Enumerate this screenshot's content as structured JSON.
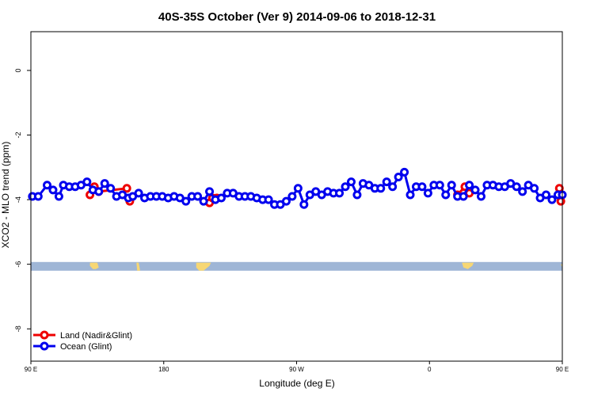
{
  "chart_data": {
    "type": "line",
    "title": "40S-35S October (Ver 9)   2014-09-06 to 2018-12-31",
    "xlabel": "Longitude (deg E)",
    "ylabel": "XCO2 - MLO trend (ppm)",
    "xlim": [
      90,
      450
    ],
    "ylim": [
      -9,
      1.2
    ],
    "x_ticks": [
      {
        "value": 90,
        "label": "90 E"
      },
      {
        "value": 180,
        "label": "180"
      },
      {
        "value": 270,
        "label": "90 W"
      },
      {
        "value": 360,
        "label": "0"
      },
      {
        "value": 450,
        "label": "90 E"
      },
      {
        "value": 540,
        "label": "180"
      }
    ],
    "y_ticks": [
      {
        "value": 0,
        "label": "0"
      },
      {
        "value": -2,
        "label": "-2"
      },
      {
        "value": -4,
        "label": "-4"
      },
      {
        "value": -6,
        "label": "-6"
      },
      {
        "value": -8,
        "label": "-8"
      }
    ],
    "legend_position": "bottom-left",
    "land_strip": {
      "y_top": -5.93,
      "y_bottom": -6.2,
      "color": "#9fb6d6",
      "land_color": "#f7d774"
    },
    "land_segments": [
      [
        [
          130,
          -5.95
        ],
        [
          135,
          -5.95
        ],
        [
          136,
          -6.1
        ],
        [
          134,
          -6.15
        ],
        [
          132,
          -6.15
        ],
        [
          130,
          -6.05
        ]
      ],
      [
        [
          161.5,
          -5.95
        ],
        [
          163,
          -5.95
        ],
        [
          164,
          -6.2
        ],
        [
          162,
          -6.2
        ]
      ],
      [
        [
          202,
          -5.95
        ],
        [
          212,
          -5.95
        ],
        [
          211,
          -6.05
        ],
        [
          207,
          -6.2
        ],
        [
          204,
          -6.2
        ],
        [
          202,
          -6.1
        ]
      ],
      [
        [
          382,
          -5.95
        ],
        [
          390,
          -5.95
        ],
        [
          389,
          -6.05
        ],
        [
          386,
          -6.15
        ],
        [
          383,
          -6.1
        ]
      ],
      [
        [
          449,
          -6.0
        ],
        [
          450,
          -6.0
        ],
        [
          450,
          -6.1
        ]
      ]
    ],
    "series": [
      {
        "name": "Land (Nadir&Glint)",
        "color": "#ee0000",
        "segments": [
          [
            [
              130,
              -3.85
            ],
            [
              133,
              -3.6
            ]
          ],
          [
            [
              136,
              -3.75
            ],
            [
              155,
              -3.65
            ]
          ],
          [
            [
              157,
              -4.05
            ]
          ],
          [
            [
              211,
              -4.1
            ],
            [
              213,
              -3.95
            ],
            [
              216,
              -3.95
            ]
          ],
          [
            [
              379,
              -3.85
            ],
            [
              384,
              -3.6
            ],
            [
              387,
              -3.8
            ]
          ],
          [
            [
              448,
              -3.65
            ],
            [
              449,
              -4.05
            ]
          ]
        ]
      },
      {
        "name": "Ocean (Glint)",
        "color": "#0000ee",
        "x": [
          91,
          95,
          101,
          105,
          109,
          112,
          116,
          120,
          124,
          128,
          132,
          136,
          140,
          144,
          148,
          152,
          156,
          159,
          163,
          167,
          171,
          175,
          179,
          183,
          187,
          191,
          195,
          199,
          203,
          207,
          211,
          215,
          219,
          223,
          227,
          231,
          235,
          239,
          243,
          247,
          251,
          255,
          259,
          263,
          267,
          271,
          275,
          279,
          283,
          287,
          291,
          295,
          299,
          303,
          307,
          311,
          315,
          319,
          323,
          327,
          331,
          335,
          339,
          343,
          347,
          351,
          355,
          359,
          363,
          367,
          371,
          375,
          379,
          383,
          387,
          391,
          395,
          399,
          403,
          407,
          411,
          415,
          419,
          423,
          427,
          431,
          435,
          439,
          443,
          447,
          450
        ],
        "y": [
          -3.9,
          -3.9,
          -3.55,
          -3.7,
          -3.9,
          -3.55,
          -3.6,
          -3.6,
          -3.55,
          -3.45,
          -3.7,
          -3.75,
          -3.5,
          -3.65,
          -3.9,
          -3.85,
          -3.95,
          -3.9,
          -3.8,
          -3.95,
          -3.9,
          -3.9,
          -3.9,
          -3.95,
          -3.9,
          -3.95,
          -4.05,
          -3.9,
          -3.9,
          -4.05,
          -3.75,
          -4.0,
          -3.95,
          -3.8,
          -3.8,
          -3.9,
          -3.9,
          -3.9,
          -3.95,
          -4.0,
          -4.0,
          -4.15,
          -4.15,
          -4.05,
          -3.9,
          -3.65,
          -4.15,
          -3.85,
          -3.75,
          -3.85,
          -3.75,
          -3.8,
          -3.8,
          -3.6,
          -3.45,
          -3.85,
          -3.5,
          -3.55,
          -3.65,
          -3.65,
          -3.45,
          -3.6,
          -3.3,
          -3.15,
          -3.85,
          -3.6,
          -3.6,
          -3.8,
          -3.55,
          -3.55,
          -3.85,
          -3.55,
          -3.9,
          -3.9,
          -3.55,
          -3.7,
          -3.9,
          -3.55,
          -3.55,
          -3.6,
          -3.6,
          -3.5,
          -3.6,
          -3.75,
          -3.55,
          -3.65,
          -3.95,
          -3.85,
          -4.0,
          -3.85,
          -3.85
        ]
      }
    ]
  }
}
